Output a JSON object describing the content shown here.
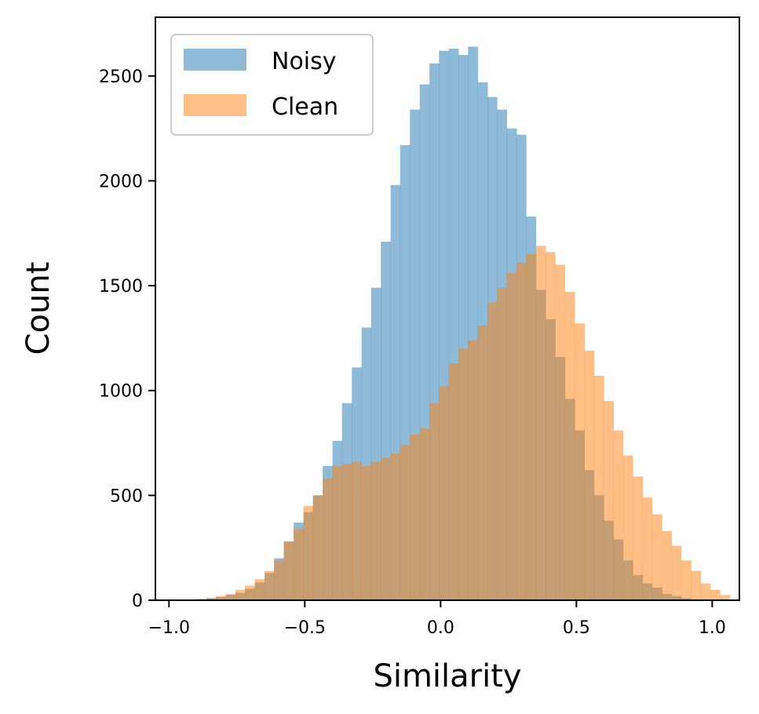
{
  "chart_data": {
    "type": "histogram",
    "title": "",
    "xlabel": "Similarity",
    "ylabel": "Count",
    "xlim": [
      -1.05,
      1.1
    ],
    "ylim": [
      0,
      2780
    ],
    "xticks": [
      -1.0,
      -0.5,
      0.0,
      0.5,
      1.0
    ],
    "xtick_labels": [
      "−1.0",
      "−0.5",
      "0.0",
      "0.5",
      "1.0"
    ],
    "yticks": [
      0,
      500,
      1000,
      1500,
      2000,
      2500
    ],
    "ytick_labels": [
      "0",
      "500",
      "1000",
      "1500",
      "2000",
      "2500"
    ],
    "grid": false,
    "legend_position": "top-left",
    "series": [
      {
        "name": "Noisy",
        "color": "#1f77b4",
        "alpha": 0.5,
        "bins": [
          [
            -0.898,
            -0.862,
            5
          ],
          [
            -0.862,
            -0.827,
            10
          ],
          [
            -0.827,
            -0.791,
            15
          ],
          [
            -0.791,
            -0.755,
            25
          ],
          [
            -0.755,
            -0.72,
            35
          ],
          [
            -0.72,
            -0.684,
            55
          ],
          [
            -0.684,
            -0.648,
            85
          ],
          [
            -0.648,
            -0.613,
            130
          ],
          [
            -0.613,
            -0.577,
            200
          ],
          [
            -0.577,
            -0.541,
            280
          ],
          [
            -0.541,
            -0.505,
            370
          ],
          [
            -0.505,
            -0.47,
            420
          ],
          [
            -0.47,
            -0.434,
            500
          ],
          [
            -0.434,
            -0.398,
            640
          ],
          [
            -0.398,
            -0.363,
            760
          ],
          [
            -0.363,
            -0.327,
            940
          ],
          [
            -0.327,
            -0.291,
            1110
          ],
          [
            -0.291,
            -0.256,
            1300
          ],
          [
            -0.256,
            -0.22,
            1490
          ],
          [
            -0.22,
            -0.184,
            1710
          ],
          [
            -0.184,
            -0.149,
            1980
          ],
          [
            -0.149,
            -0.113,
            2170
          ],
          [
            -0.113,
            -0.077,
            2340
          ],
          [
            -0.077,
            -0.041,
            2460
          ],
          [
            -0.041,
            -0.006,
            2560
          ],
          [
            -0.006,
            0.03,
            2620
          ],
          [
            0.03,
            0.066,
            2630
          ],
          [
            0.066,
            0.101,
            2600
          ],
          [
            0.101,
            0.137,
            2640
          ],
          [
            0.137,
            0.173,
            2470
          ],
          [
            0.173,
            0.208,
            2400
          ],
          [
            0.208,
            0.244,
            2340
          ],
          [
            0.244,
            0.28,
            2250
          ],
          [
            0.28,
            0.315,
            2220
          ],
          [
            0.315,
            0.351,
            1830
          ],
          [
            0.351,
            0.387,
            1480
          ],
          [
            0.387,
            0.422,
            1340
          ],
          [
            0.422,
            0.458,
            1160
          ],
          [
            0.458,
            0.494,
            960
          ],
          [
            0.494,
            0.53,
            810
          ],
          [
            0.53,
            0.565,
            620
          ],
          [
            0.565,
            0.601,
            500
          ],
          [
            0.601,
            0.637,
            380
          ],
          [
            0.637,
            0.672,
            290
          ],
          [
            0.672,
            0.708,
            190
          ],
          [
            0.708,
            0.744,
            120
          ],
          [
            0.744,
            0.779,
            80
          ],
          [
            0.779,
            0.815,
            60
          ],
          [
            0.815,
            0.851,
            30
          ],
          [
            0.851,
            0.886,
            20
          ],
          [
            0.886,
            0.922,
            10
          ]
        ]
      },
      {
        "name": "Clean",
        "color": "#ff7f0e",
        "alpha": 0.5,
        "bins": [
          [
            -0.898,
            -0.862,
            5
          ],
          [
            -0.862,
            -0.827,
            10
          ],
          [
            -0.827,
            -0.791,
            20
          ],
          [
            -0.791,
            -0.755,
            30
          ],
          [
            -0.755,
            -0.72,
            50
          ],
          [
            -0.72,
            -0.684,
            70
          ],
          [
            -0.684,
            -0.648,
            100
          ],
          [
            -0.648,
            -0.613,
            140
          ],
          [
            -0.613,
            -0.577,
            190
          ],
          [
            -0.577,
            -0.541,
            280
          ],
          [
            -0.541,
            -0.505,
            340
          ],
          [
            -0.505,
            -0.47,
            450
          ],
          [
            -0.47,
            -0.434,
            500
          ],
          [
            -0.434,
            -0.398,
            580
          ],
          [
            -0.398,
            -0.363,
            640
          ],
          [
            -0.363,
            -0.327,
            650
          ],
          [
            -0.327,
            -0.291,
            660
          ],
          [
            -0.291,
            -0.256,
            640
          ],
          [
            -0.256,
            -0.22,
            660
          ],
          [
            -0.22,
            -0.184,
            680
          ],
          [
            -0.184,
            -0.149,
            700
          ],
          [
            -0.149,
            -0.113,
            740
          ],
          [
            -0.113,
            -0.077,
            790
          ],
          [
            -0.077,
            -0.041,
            820
          ],
          [
            -0.041,
            -0.006,
            940
          ],
          [
            -0.006,
            0.03,
            1020
          ],
          [
            0.03,
            0.066,
            1130
          ],
          [
            0.066,
            0.101,
            1200
          ],
          [
            0.101,
            0.137,
            1240
          ],
          [
            0.137,
            0.173,
            1310
          ],
          [
            0.173,
            0.208,
            1420
          ],
          [
            0.208,
            0.244,
            1490
          ],
          [
            0.244,
            0.28,
            1560
          ],
          [
            0.28,
            0.315,
            1610
          ],
          [
            0.315,
            0.351,
            1650
          ],
          [
            0.351,
            0.387,
            1690
          ],
          [
            0.387,
            0.422,
            1660
          ],
          [
            0.422,
            0.458,
            1600
          ],
          [
            0.458,
            0.494,
            1470
          ],
          [
            0.494,
            0.53,
            1320
          ],
          [
            0.53,
            0.565,
            1190
          ],
          [
            0.565,
            0.601,
            1070
          ],
          [
            0.601,
            0.637,
            950
          ],
          [
            0.637,
            0.672,
            810
          ],
          [
            0.672,
            0.708,
            690
          ],
          [
            0.708,
            0.744,
            590
          ],
          [
            0.744,
            0.779,
            490
          ],
          [
            0.779,
            0.815,
            410
          ],
          [
            0.815,
            0.851,
            330
          ],
          [
            0.851,
            0.886,
            260
          ],
          [
            0.886,
            0.922,
            190
          ],
          [
            0.922,
            0.958,
            140
          ],
          [
            0.958,
            0.993,
            80
          ],
          [
            0.993,
            1.029,
            50
          ],
          [
            1.029,
            1.065,
            25
          ]
        ]
      }
    ]
  }
}
